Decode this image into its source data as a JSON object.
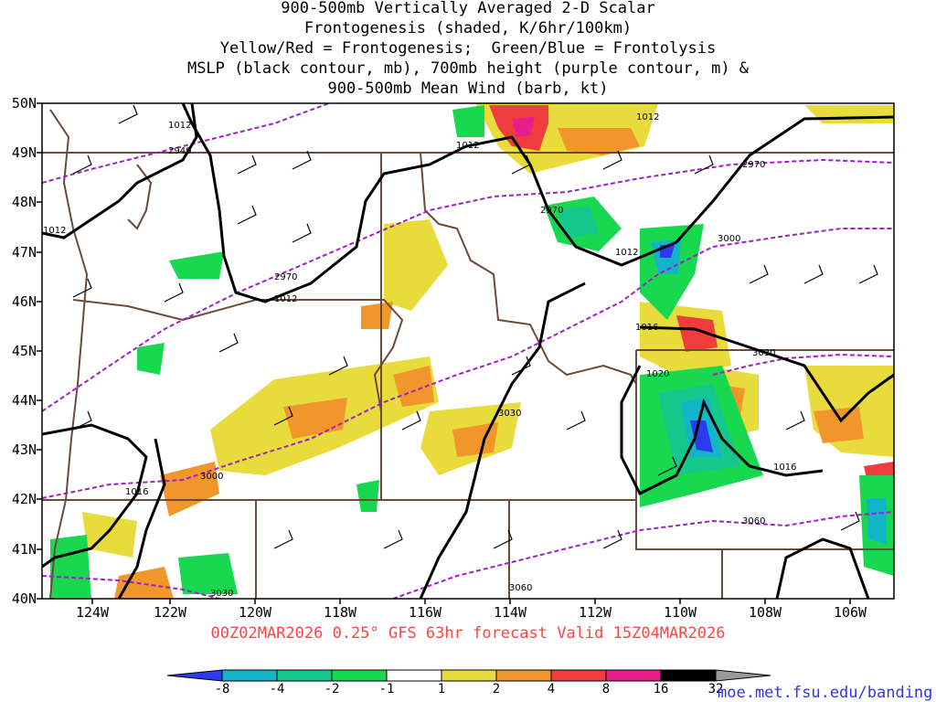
{
  "title": {
    "line1": "900-500mb Vertically Averaged 2-D Scalar",
    "line2": "Frontogenesis (shaded, K/6hr/100km)",
    "line3": "Yellow/Red = Frontogenesis;  Green/Blue = Frontolysis",
    "line4": "MSLP (black contour, mb), 700mb height (purple contour, m) &",
    "line5": "900-500mb Mean Wind (barb, kt)"
  },
  "footer": "00Z02MAR2026 0.25° GFS 63hr forecast Valid 15Z04MAR2026",
  "credit": "moe.met.fsu.edu/banding",
  "lat_labels": [
    "50N",
    "49N",
    "48N",
    "47N",
    "46N",
    "45N",
    "44N",
    "43N",
    "42N",
    "41N",
    "40N"
  ],
  "lon_labels": [
    "124W",
    "122W",
    "120W",
    "118W",
    "116W",
    "114W",
    "112W",
    "110W",
    "108W",
    "106W"
  ],
  "colorbar": {
    "ticks": [
      "-8",
      "-4",
      "-2",
      "-1",
      "1",
      "2",
      "4",
      "8",
      "16",
      "32"
    ],
    "colors": [
      "#2a3cf0",
      "#12b4c8",
      "#14c88c",
      "#18d850",
      "#ffffff",
      "#e8dc3c",
      "#f0962a",
      "#f03c3c",
      "#e61e8c",
      "#000000",
      "#9a9a9a"
    ]
  },
  "mslp_contour_labels": [
    "1012",
    "1012",
    "1012",
    "1012",
    "1012",
    "1016",
    "1016",
    "1020",
    "1016"
  ],
  "height_contour_labels": [
    "2940",
    "2970",
    "2970",
    "2970",
    "3000",
    "3000",
    "3030",
    "3030",
    "3030",
    "3060",
    "3060"
  ],
  "map": {
    "lat_range": [
      40,
      50
    ],
    "lon_range": [
      -125,
      -105
    ],
    "shading_colors": {
      "frontogenesis_weak": "#e8dc3c",
      "frontogenesis_mod": "#f0962a",
      "frontogenesis_strong": "#f03c3c",
      "frontogenesis_extreme": "#e61e8c",
      "frontolysis_weak": "#18d850",
      "frontolysis_mod": "#14c88c",
      "frontolysis_strong": "#12b4c8",
      "frontolysis_extreme": "#2a3cf0"
    },
    "mslp_color": "#000000",
    "height_color": "#a020c8",
    "border_color": "#6b4a3a"
  }
}
